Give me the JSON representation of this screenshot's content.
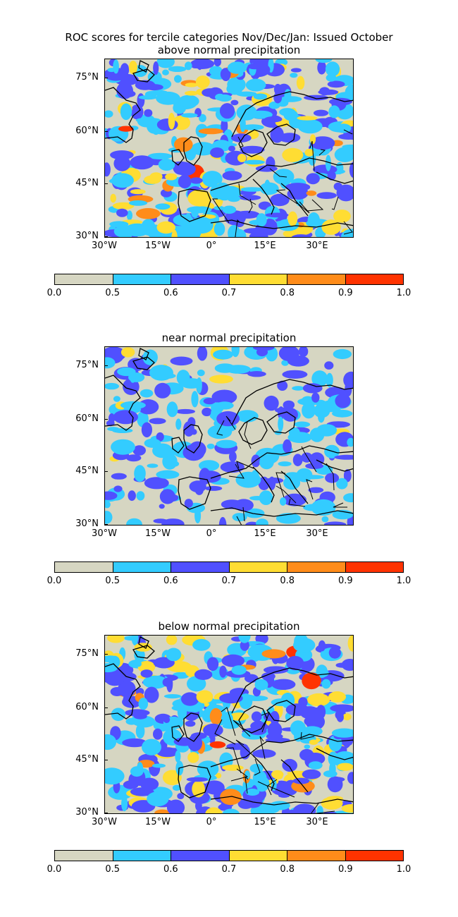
{
  "figure": {
    "title": "ROC scores for tercile categories Nov/Dec/Jan: Issued October"
  },
  "panels": [
    {
      "subtitle": "above normal precipitation"
    },
    {
      "subtitle": "near normal precipitation"
    },
    {
      "subtitle": "below normal precipitation"
    }
  ],
  "axes": {
    "y_ticks": [
      "75°N",
      "60°N",
      "45°N",
      "30°N"
    ],
    "x_ticks": [
      "30°W",
      "15°W",
      "0°",
      "15°E",
      "30°E"
    ]
  },
  "colorbar": {
    "tick_labels": [
      "0.0",
      "0.5",
      "0.6",
      "0.7",
      "0.8",
      "0.9",
      "1.0"
    ],
    "colors": [
      "#d6d6c2",
      "#33ccff",
      "#5050ff",
      "#ffdd33",
      "#ff8c1a",
      "#ff3300"
    ]
  },
  "map_colors": {
    "land_sea_base": "#d6d6c2",
    "coastline": "#000000"
  }
}
